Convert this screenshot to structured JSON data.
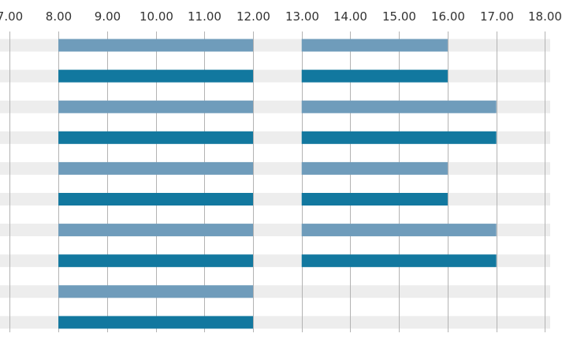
{
  "chart_data": {
    "type": "bar",
    "orientation": "horizontal",
    "x_axis_position": "top",
    "x_ticks": [
      "7.00",
      "8.00",
      "9.00",
      "10.00",
      "11.00",
      "12.00",
      "13.00",
      "14.00",
      "15.00",
      "16.00",
      "17.00",
      "18.00"
    ],
    "xlim": [
      6.8,
      18.35
    ],
    "grid": true,
    "row_band_color": "#ededed",
    "colors": {
      "light": "#6f9cbb",
      "dark": "#12789f"
    },
    "rows": [
      {
        "shade": "light",
        "bars": [
          [
            8,
            12
          ],
          [
            13,
            16
          ]
        ]
      },
      {
        "shade": "dark",
        "bars": [
          [
            8,
            12
          ],
          [
            13,
            16
          ]
        ]
      },
      {
        "shade": "light",
        "bars": [
          [
            8,
            12
          ],
          [
            13,
            17
          ]
        ]
      },
      {
        "shade": "dark",
        "bars": [
          [
            8,
            12
          ],
          [
            13,
            17
          ]
        ]
      },
      {
        "shade": "light",
        "bars": [
          [
            8,
            12
          ],
          [
            13,
            16
          ]
        ]
      },
      {
        "shade": "dark",
        "bars": [
          [
            8,
            12
          ],
          [
            13,
            16
          ]
        ]
      },
      {
        "shade": "light",
        "bars": [
          [
            8,
            12
          ],
          [
            13,
            17
          ]
        ]
      },
      {
        "shade": "dark",
        "bars": [
          [
            8,
            12
          ],
          [
            13,
            17
          ]
        ]
      },
      {
        "shade": "light",
        "bars": [
          [
            8,
            12
          ]
        ]
      },
      {
        "shade": "dark",
        "bars": [
          [
            8,
            12
          ]
        ]
      }
    ]
  }
}
